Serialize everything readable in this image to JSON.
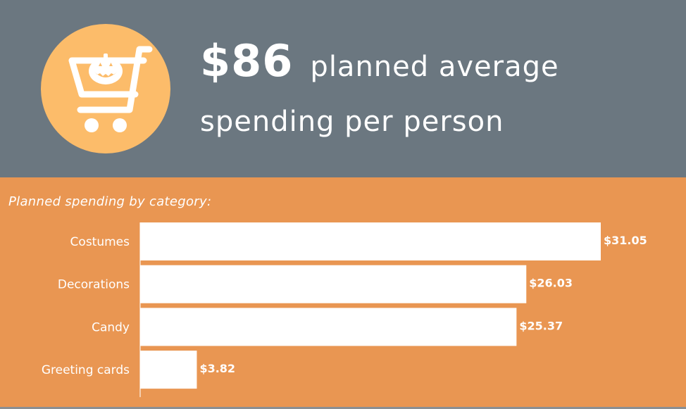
{
  "header": {
    "amount": "$86",
    "line1_text": "planned average",
    "line2_text": "spending per person",
    "icon": "shopping-cart-pumpkin-icon"
  },
  "colors": {
    "header_bg": "#6b7780",
    "body_bg": "#e99652",
    "circle": "#fcbc6a",
    "bar": "#ffffff",
    "text": "#ffffff"
  },
  "chart_data": {
    "type": "bar",
    "orientation": "horizontal",
    "title": "Planned spending by category:",
    "categories": [
      "Costumes",
      "Decorations",
      "Candy",
      "Greeting cards"
    ],
    "values": [
      31.05,
      26.03,
      25.37,
      3.82
    ],
    "value_labels": [
      "$31.05",
      "$26.03",
      "$25.37",
      "$3.82"
    ],
    "xlabel": "",
    "ylabel": "",
    "grid": false,
    "legend": "none"
  }
}
